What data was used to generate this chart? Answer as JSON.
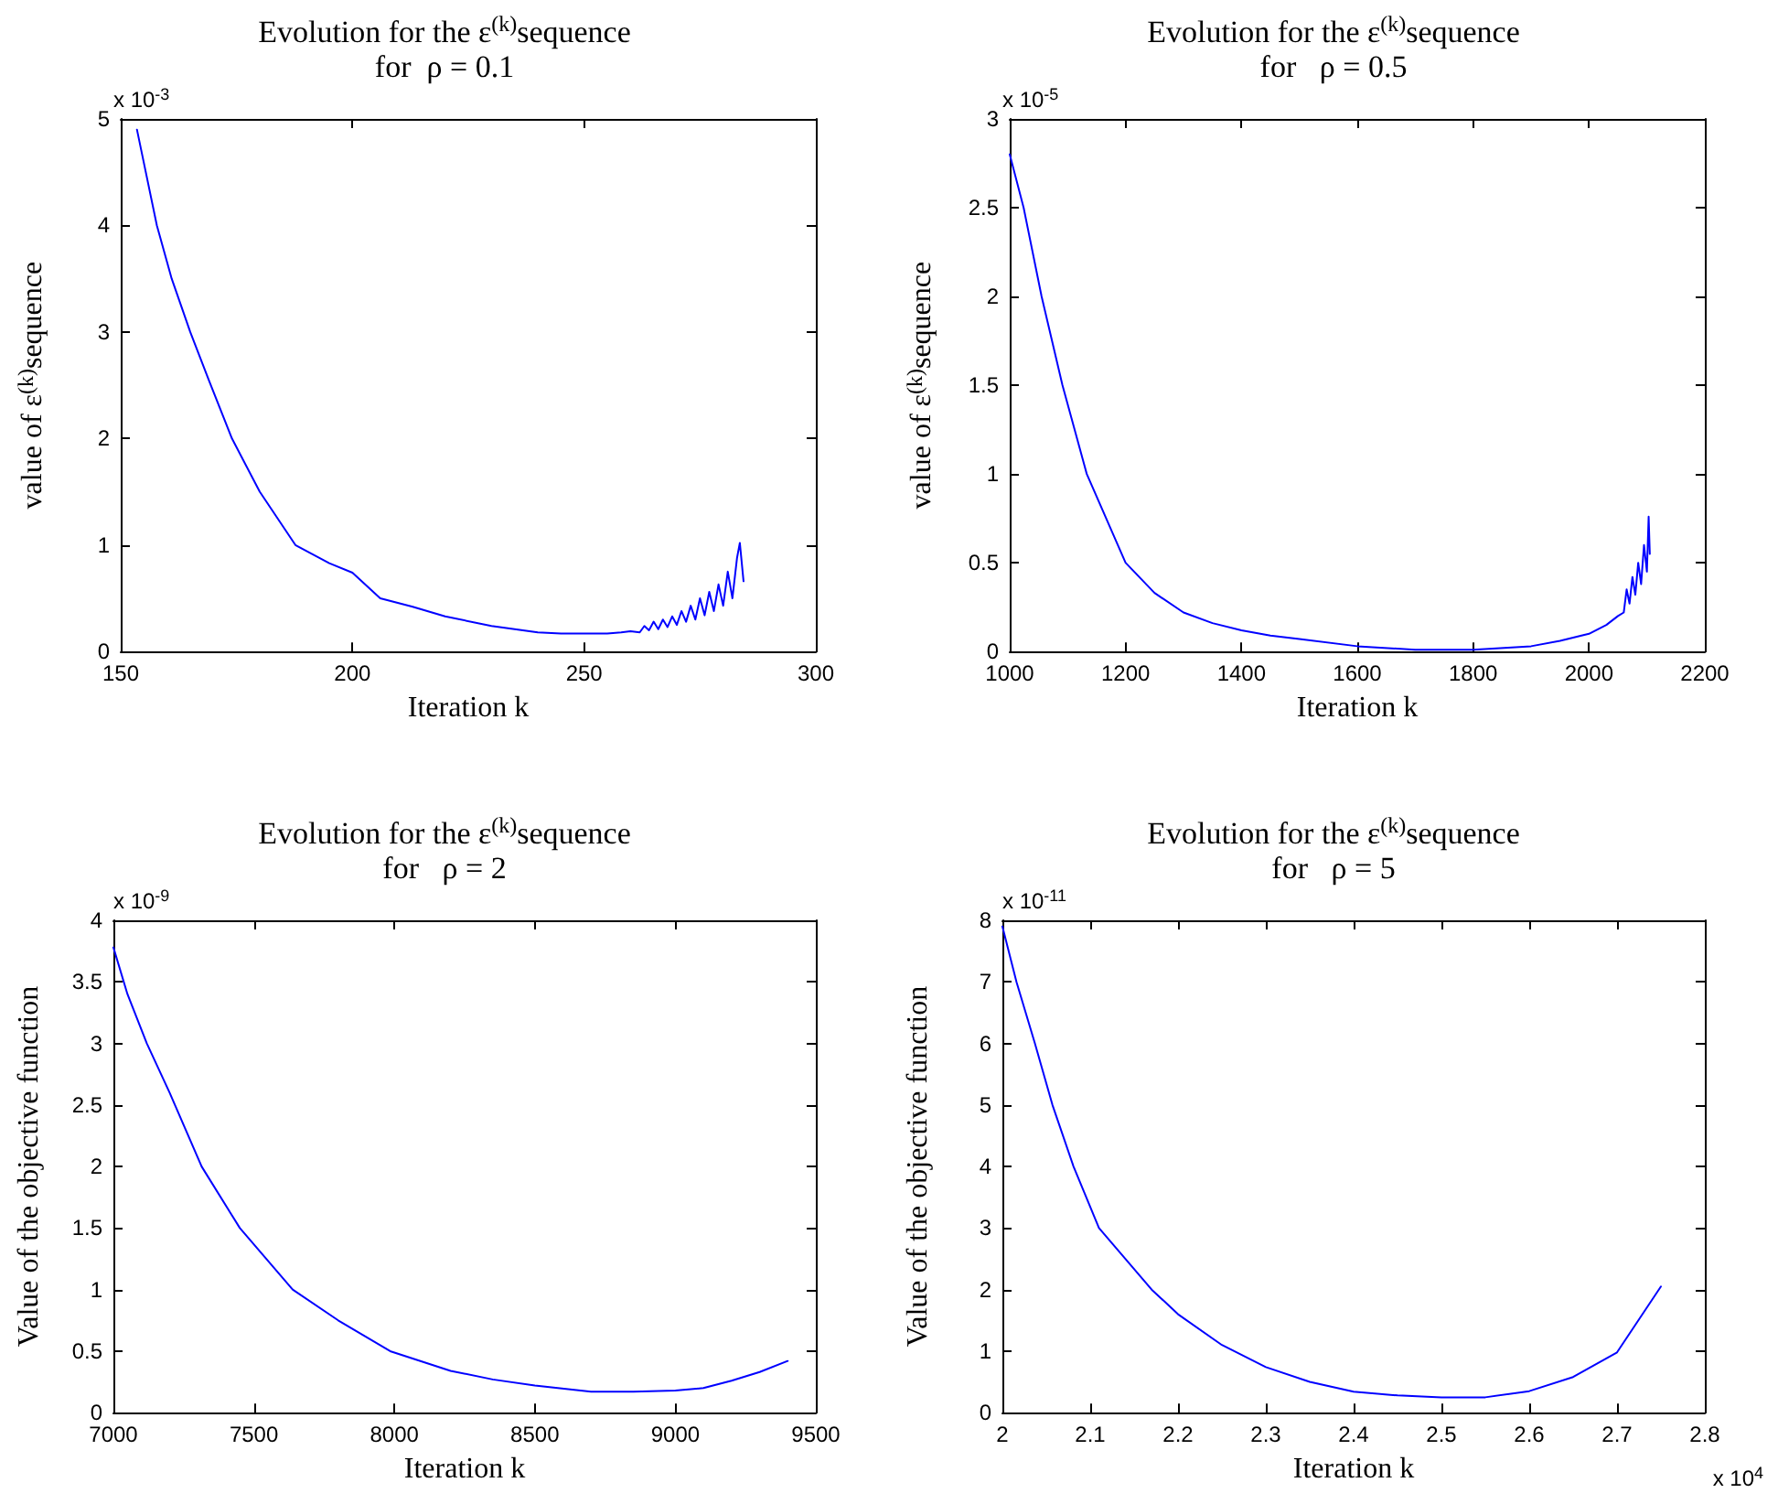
{
  "chart_data": [
    {
      "type": "line",
      "title": "Evolution for the ε$^{(k)}$sequence",
      "subtitle": "for  ρ = 0.1",
      "xlabel": "Iteration k",
      "ylabel": "value of ε$^{(k)}$sequence",
      "annotations": [
        "x 10$^{-3}$"
      ],
      "x": [
        153.5,
        157.8,
        161,
        165,
        169,
        174,
        180,
        187.7,
        195,
        200,
        206,
        213,
        220,
        230,
        240,
        245,
        250,
        255,
        258,
        260,
        262,
        263,
        264,
        265,
        266,
        267,
        268,
        269,
        270,
        271,
        272,
        273,
        274,
        275,
        276,
        277,
        278,
        279,
        280,
        281,
        282,
        283,
        283.6,
        284.4
      ],
      "series": [
        {
          "color": "#0000ff",
          "values": [
            4.9,
            4,
            3.5,
            3,
            2.55,
            2,
            1.5,
            1,
            0.83,
            0.74,
            0.5,
            0.42,
            0.33,
            0.24,
            0.18,
            0.17,
            0.17,
            0.17,
            0.18,
            0.19,
            0.18,
            0.24,
            0.2,
            0.28,
            0.21,
            0.3,
            0.23,
            0.33,
            0.25,
            0.38,
            0.28,
            0.43,
            0.3,
            0.5,
            0.34,
            0.56,
            0.38,
            0.63,
            0.43,
            0.75,
            0.5,
            0.88,
            1.02,
            0.66
          ]
        }
      ],
      "xlim": [
        150,
        300
      ],
      "xticks": [
        150,
        200,
        250,
        300
      ],
      "ylim": [
        0,
        5
      ],
      "yticks": [
        0,
        1,
        2,
        3,
        4,
        5
      ],
      "grid": false,
      "marker": "none",
      "line_style": "solid"
    },
    {
      "type": "line",
      "title": "Evolution for the ε$^{(k)}$sequence",
      "subtitle": "for   ρ = 0.5",
      "xlabel": "Iteration k",
      "ylabel": "value of ε$^{(k)}$sequence",
      "annotations": [
        "x 10$^{-5}$"
      ],
      "x": [
        1000,
        1024,
        1055,
        1091,
        1133,
        1200,
        1250,
        1300,
        1350,
        1400,
        1450,
        1500,
        1600,
        1700,
        1800,
        1900,
        1950,
        2000,
        2030,
        2050,
        2060,
        2065,
        2070,
        2075,
        2080,
        2085,
        2090,
        2095,
        2100,
        2103,
        2105
      ],
      "series": [
        {
          "color": "#0000ff",
          "values": [
            2.8,
            2.5,
            2,
            1.5,
            1,
            0.5,
            0.33,
            0.22,
            0.16,
            0.12,
            0.09,
            0.07,
            0.03,
            0.01,
            0.01,
            0.03,
            0.06,
            0.1,
            0.15,
            0.2,
            0.22,
            0.35,
            0.27,
            0.42,
            0.32,
            0.5,
            0.38,
            0.6,
            0.45,
            0.76,
            0.55
          ]
        }
      ],
      "xlim": [
        1000,
        2200
      ],
      "xticks": [
        1000,
        1200,
        1400,
        1600,
        1800,
        2000,
        2200
      ],
      "ylim": [
        0,
        3
      ],
      "yticks": [
        0,
        0.5,
        1,
        1.5,
        2,
        2.5,
        3
      ],
      "grid": false,
      "marker": "none",
      "line_style": "solid"
    },
    {
      "type": "line",
      "title": "Evolution for the ε$^{(k)}$sequence",
      "subtitle": "for   ρ = 2",
      "xlabel": "Iteration k",
      "ylabel": "Value of the objective function",
      "annotations": [
        "x 10$^{-9}$"
      ],
      "x": [
        7000,
        7050,
        7119,
        7200,
        7314,
        7450,
        7638,
        7800,
        7985,
        8200,
        8350,
        8500,
        8700,
        8850,
        9000,
        9100,
        9200,
        9300,
        9400
      ],
      "series": [
        {
          "color": "#0000ff",
          "values": [
            3.78,
            3.4,
            3,
            2.6,
            2,
            1.5,
            1,
            0.75,
            0.5,
            0.34,
            0.27,
            0.22,
            0.17,
            0.17,
            0.18,
            0.2,
            0.26,
            0.33,
            0.42
          ]
        }
      ],
      "xlim": [
        7000,
        9500
      ],
      "xticks": [
        7000,
        7500,
        8000,
        8500,
        9000,
        9500
      ],
      "ylim": [
        0,
        4
      ],
      "yticks": [
        0,
        0.5,
        1,
        1.5,
        2,
        2.5,
        3,
        3.5,
        4
      ],
      "grid": false,
      "marker": "none",
      "line_style": "solid"
    },
    {
      "type": "line",
      "title": "Evolution for the ε$^{(k)}$sequence",
      "subtitle": "for   ρ = 5",
      "xlabel": "Iteration k",
      "ylabel": "Value of the objective function",
      "annotations": [
        "x 10$^{-11}$",
        "x 10$^{4}$"
      ],
      "x": [
        2.0,
        2.016,
        2.037,
        2.057,
        2.081,
        2.11,
        2.17,
        2.2,
        2.25,
        2.3,
        2.35,
        2.4,
        2.45,
        2.5,
        2.55,
        2.6,
        2.65,
        2.7,
        2.75
      ],
      "series": [
        {
          "color": "#0000ff",
          "values": [
            7.9,
            7,
            6,
            5,
            4,
            3,
            2,
            1.6,
            1.1,
            0.74,
            0.5,
            0.34,
            0.28,
            0.25,
            0.25,
            0.35,
            0.58,
            0.98,
            2.05
          ]
        }
      ],
      "xlim": [
        2,
        2.8
      ],
      "xticks": [
        2,
        2.1,
        2.2,
        2.3,
        2.4,
        2.5,
        2.6,
        2.7,
        2.8
      ],
      "ylim": [
        0,
        8
      ],
      "yticks": [
        0,
        1,
        2,
        3,
        4,
        5,
        6,
        7,
        8
      ],
      "grid": false,
      "marker": "none",
      "line_style": "solid"
    }
  ]
}
